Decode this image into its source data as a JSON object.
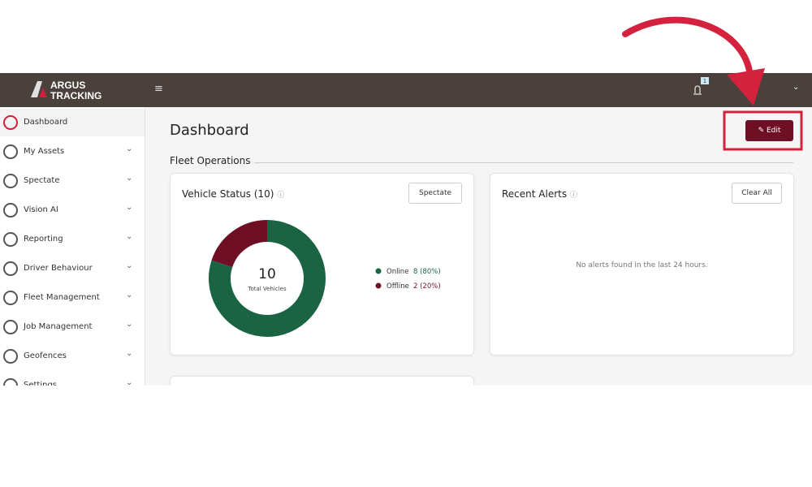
{
  "header": {
    "logo_top": "ARGUS",
    "logo_bottom": "TRACKING",
    "notification_count": "1"
  },
  "sidebar": {
    "items": [
      "Dashboard",
      "My Assets",
      "Spectate",
      "Vision AI",
      "Reporting",
      "Driver Behaviour",
      "Fleet Management",
      "Job Management",
      "Geofences",
      "Settings"
    ]
  },
  "page": {
    "title": "Dashboard",
    "edit_button": "Edit",
    "section_title": "Fleet Operations"
  },
  "vehicle_status": {
    "title": "Vehicle Status (10)",
    "button": "Spectate",
    "chart_data": {
      "type": "donut",
      "total": 10,
      "total_label": "Total Vehicles",
      "categories": [
        "Online",
        "Offline"
      ],
      "values": [
        8,
        2
      ],
      "value_labels": [
        "8 (80%)",
        "2 (20%)"
      ],
      "colors": [
        "#1a6343",
        "#6e0f26"
      ]
    }
  },
  "recent_alerts": {
    "title": "Recent Alerts",
    "button": "Clear All",
    "empty_message": "No alerts found in the last 24 hours."
  }
}
